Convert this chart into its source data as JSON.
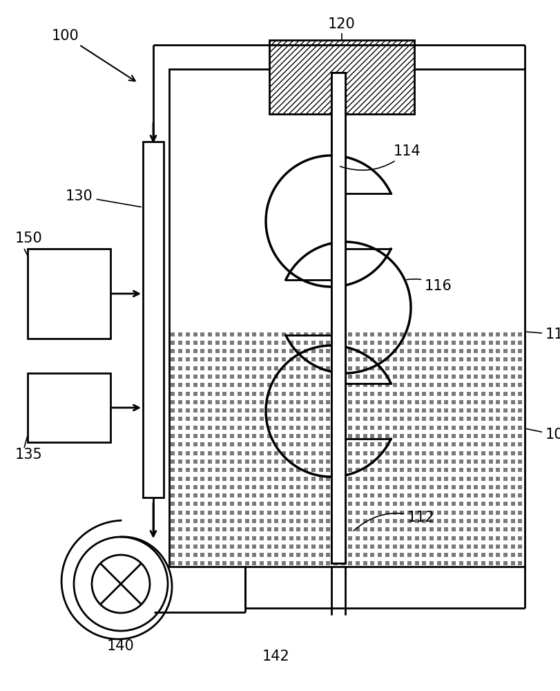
{
  "bg_color": "#ffffff",
  "line_color": "#000000",
  "figsize": [
    8.12,
    10.0
  ],
  "dpi": 100
}
